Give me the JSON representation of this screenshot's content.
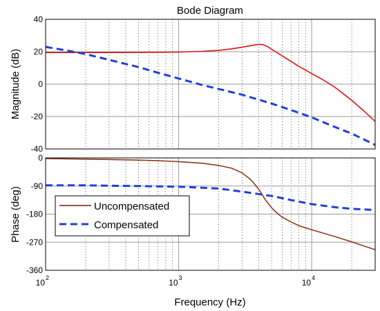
{
  "chart_data": [
    {
      "type": "line",
      "title": "Bode Diagram",
      "ylabel": "Magnitude (dB)",
      "xscale": "log",
      "xlim": [
        100,
        30000
      ],
      "ylim": [
        -40,
        40
      ],
      "yticks": [
        "40",
        "20",
        "0",
        "-20",
        "-40"
      ],
      "grid": "vertical log grid, horizontal at each tick",
      "series": [
        {
          "name": "Uncompensated",
          "color": "#dd1111",
          "style": "solid",
          "x": [
            100,
            150,
            200,
            300,
            500,
            1000,
            1500,
            2000,
            2500,
            3000,
            3500,
            4000,
            4300,
            4700,
            5000,
            6000,
            7000,
            8000,
            10000,
            12000,
            15000,
            20000,
            25000,
            30000
          ],
          "y": [
            19.5,
            19.5,
            19.5,
            19.5,
            19.6,
            19.8,
            20.2,
            20.8,
            21.8,
            22.8,
            23.8,
            24.5,
            24.4,
            23,
            21.5,
            17.5,
            14,
            11,
            6.5,
            3,
            -2,
            -10,
            -17,
            -23
          ]
        },
        {
          "name": "Compensated",
          "color": "#1f3fd6",
          "style": "dashed",
          "x": [
            100,
            150,
            200,
            300,
            500,
            700,
            1000,
            1500,
            2000,
            3000,
            5000,
            7000,
            10000,
            15000,
            20000,
            30000
          ],
          "y": [
            23,
            20.5,
            18.5,
            15,
            10.5,
            7,
            3.5,
            -0.5,
            -3,
            -6.5,
            -12,
            -16,
            -20.5,
            -26.5,
            -30.5,
            -37.5
          ]
        }
      ]
    },
    {
      "type": "line",
      "xlabel": "Frequency  (Hz)",
      "ylabel": "Phase (deg)",
      "xscale": "log",
      "xlim": [
        100,
        30000
      ],
      "ylim": [
        -360,
        0
      ],
      "yticks": [
        "0",
        "-90",
        "-180",
        "-270",
        "-360"
      ],
      "xticks": [
        {
          "value": 100,
          "base": "10",
          "exp": "2"
        },
        {
          "value": 1000,
          "base": "10",
          "exp": "3"
        },
        {
          "value": 10000,
          "base": "10",
          "exp": "4"
        }
      ],
      "legend": {
        "placement": "left",
        "entries": [
          "Uncompensated",
          "Compensated"
        ]
      },
      "series": [
        {
          "name": "Uncompensated",
          "color": "#8b3a1e",
          "style": "solid",
          "x": [
            100,
            200,
            300,
            500,
            700,
            1000,
            1500,
            2000,
            2500,
            3000,
            3500,
            4000,
            4500,
            5000,
            5500,
            6000,
            7000,
            8000,
            10000,
            15000,
            20000,
            30000
          ],
          "y": [
            -2,
            -4,
            -5,
            -7,
            -9,
            -12,
            -17,
            -24,
            -33,
            -48,
            -70,
            -100,
            -135,
            -160,
            -177,
            -190,
            -205,
            -217,
            -230,
            -252,
            -269,
            -294
          ]
        },
        {
          "name": "Compensated",
          "color": "#1f3fd6",
          "style": "dashed",
          "x": [
            100,
            200,
            300,
            500,
            1000,
            2000,
            3000,
            5000,
            7000,
            10000,
            15000,
            20000,
            30000
          ],
          "y": [
            -88,
            -88,
            -89,
            -90,
            -92,
            -98,
            -108,
            -122,
            -135,
            -148,
            -158,
            -163,
            -167
          ]
        }
      ]
    }
  ]
}
